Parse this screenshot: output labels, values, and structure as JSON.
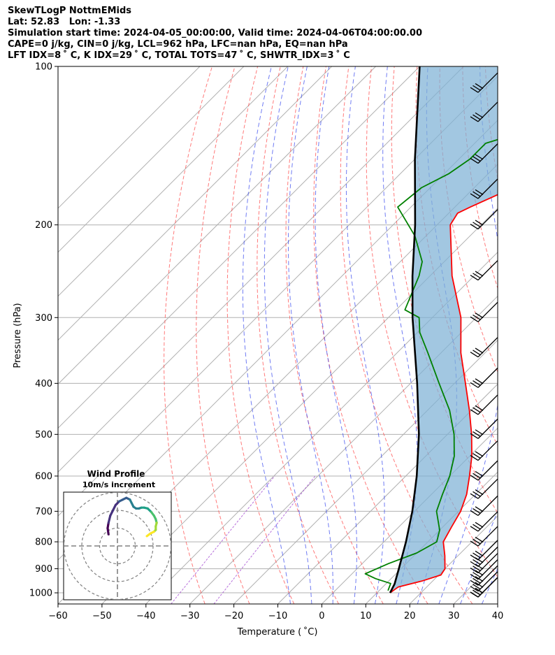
{
  "header": {
    "line1": "SkewTLogP NottmEMids",
    "line2": "Lat: 52.83   Lon: -1.33",
    "line3": "Simulation start time: 2024-04-05_00:00:00, Valid time: 2024-04-06T04:00:00.00",
    "line4": "CAPE=0 j/kg, CIN=0 j/kg, LCL=962 hPa, LFC=nan hPa, EQ=nan hPa",
    "line5": "LFT IDX=8 ˚ C, K IDX=29 ˚ C, TOTAL TOTS=47 ˚ C, SHWTR_IDX=3 ˚ C"
  },
  "chart_data": [
    {
      "type": "line",
      "subtype": "skew-T log-P",
      "xlabel": "Temperature ( ˚C)",
      "ylabel": "Pressure (hPa)",
      "xlim": [
        -60,
        40
      ],
      "ylim": [
        1050,
        100
      ],
      "yscale": "log",
      "grid": true,
      "xticks": [
        -60,
        -50,
        -40,
        -30,
        -20,
        -10,
        0,
        10,
        20,
        30,
        40
      ],
      "yticks": [
        1000,
        900,
        800,
        700,
        600,
        500,
        400,
        300,
        200,
        100
      ],
      "series": [
        {
          "role": "temperature",
          "color": "#ff0000",
          "p": [
            1000,
            975,
            950,
            925,
            900,
            850,
            800,
            750,
            700,
            650,
            600,
            550,
            500,
            450,
            400,
            350,
            300,
            250,
            200,
            190,
            185,
            175,
            160,
            150,
            140,
            130,
            125,
            120,
            115,
            110,
            100
          ],
          "t": [
            13,
            13.5,
            17.5,
            20.5,
            20,
            17,
            13.5,
            12,
            10.5,
            8,
            4.5,
            0.5,
            -4.5,
            -10.5,
            -17.5,
            -25.5,
            -33.5,
            -45,
            -57,
            -58,
            -56.5,
            -53,
            -46,
            -41.5,
            -37,
            -34.5,
            -33.5,
            -31.5,
            -31,
            -31,
            -32.5
          ]
        },
        {
          "role": "dewpoint",
          "color": "#008000",
          "p": [
            990,
            960,
            940,
            920,
            880,
            840,
            800,
            760,
            700,
            650,
            600,
            550,
            500,
            450,
            400,
            350,
            320,
            300,
            290,
            250,
            235,
            210,
            185,
            170,
            160,
            150,
            140,
            130,
            120,
            110,
            100
          ],
          "t": [
            12,
            11,
            6.5,
            3,
            6,
            10,
            12,
            10,
            5,
            2.5,
            0,
            -3.5,
            -8.5,
            -15,
            -23.5,
            -33,
            -39.5,
            -43,
            -48,
            -52.5,
            -55,
            -62.5,
            -73,
            -72,
            -69,
            -67.5,
            -67.5,
            -59,
            -51.5,
            -46,
            -42.5
          ]
        },
        {
          "role": "parcel",
          "color": "#000000",
          "p": [
            1000,
            962,
            900,
            800,
            700,
            600,
            500,
            400,
            300,
            250,
            200,
            150,
            100
          ],
          "t": [
            13,
            12,
            9.5,
            5,
            -0.5,
            -7.5,
            -16.5,
            -28.5,
            -44.5,
            -54,
            -65,
            -80,
            -100
          ]
        }
      ],
      "wind_barbs": {
        "p": [
          1000,
          1000,
          1000,
          975,
          950,
          925,
          900,
          875,
          850,
          800,
          750,
          700,
          650,
          600,
          550,
          500,
          450,
          400,
          350,
          300,
          250,
          200,
          175,
          150,
          125,
          110
        ],
        "dir_deg": [
          260,
          265,
          270,
          270,
          270,
          270,
          270,
          260,
          260,
          250,
          250,
          250,
          240,
          240,
          240,
          235,
          235,
          235,
          230,
          230,
          230,
          225,
          225,
          225,
          225,
          225
        ]
      }
    },
    {
      "type": "line",
      "subtype": "hodograph",
      "title": "Wind Profile",
      "subtitle": "10m/s increment",
      "rings": [
        10,
        20,
        30
      ],
      "colormap": "viridis",
      "u": [
        -5,
        -5.5,
        -5,
        -4,
        -2.5,
        -1,
        1,
        3,
        5,
        7,
        9,
        10.5,
        12,
        13.5,
        15,
        17,
        19,
        20.5,
        21.5,
        22,
        22,
        21.5,
        21.5,
        20.5,
        18.5,
        16.5
      ],
      "v": [
        6.5,
        10,
        13,
        17,
        20,
        23,
        25,
        26,
        27,
        26,
        22,
        21,
        21,
        21.5,
        21.5,
        21,
        19,
        17,
        15,
        13,
        13,
        11,
        9,
        8,
        7,
        5.5
      ]
    }
  ]
}
